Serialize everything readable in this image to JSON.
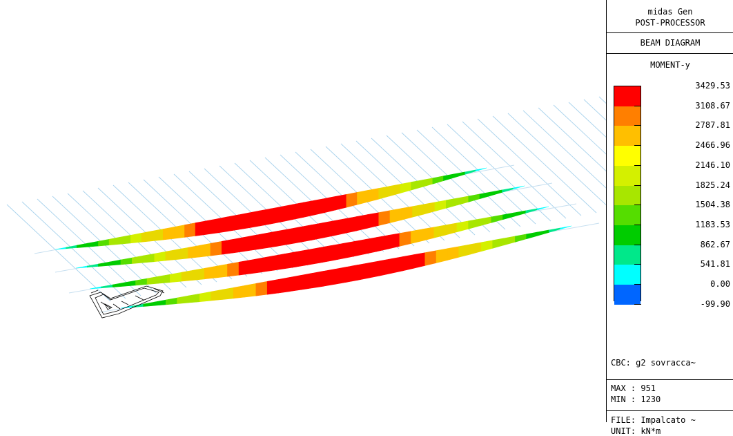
{
  "panel": {
    "app_line1": "midas Gen",
    "app_line2": "POST-PROCESSOR",
    "mode": "BEAM DIAGRAM",
    "component": "MOMENT-y",
    "legend": [
      {
        "value": "3429.53",
        "color": "#ff0000"
      },
      {
        "value": "3108.67",
        "color": "#ff7f00"
      },
      {
        "value": "2787.81",
        "color": "#ffbf00"
      },
      {
        "value": "2466.96",
        "color": "#ffff00"
      },
      {
        "value": "2146.10",
        "color": "#d4f000"
      },
      {
        "value": "1825.24",
        "color": "#a8e600"
      },
      {
        "value": "1504.38",
        "color": "#55dd00"
      },
      {
        "value": "1183.53",
        "color": "#00cc00"
      },
      {
        "value": "862.67",
        "color": "#00e88a"
      },
      {
        "value": "541.81",
        "color": "#00ffff"
      },
      {
        "value": "0.00",
        "color": "#0066ff"
      },
      {
        "value": "-99.90",
        "color": ""
      }
    ],
    "cbc": "CBC: g2 sovracca~",
    "max": "MAX : 951",
    "min": "MIN : 1230",
    "file": "FILE: Impalcato ~",
    "unit": "UNIT: kN*m"
  },
  "model": {
    "colors": {
      "grid_line": "#a8d2ec",
      "base_line": "#c6dff0",
      "support": "#000000"
    }
  }
}
